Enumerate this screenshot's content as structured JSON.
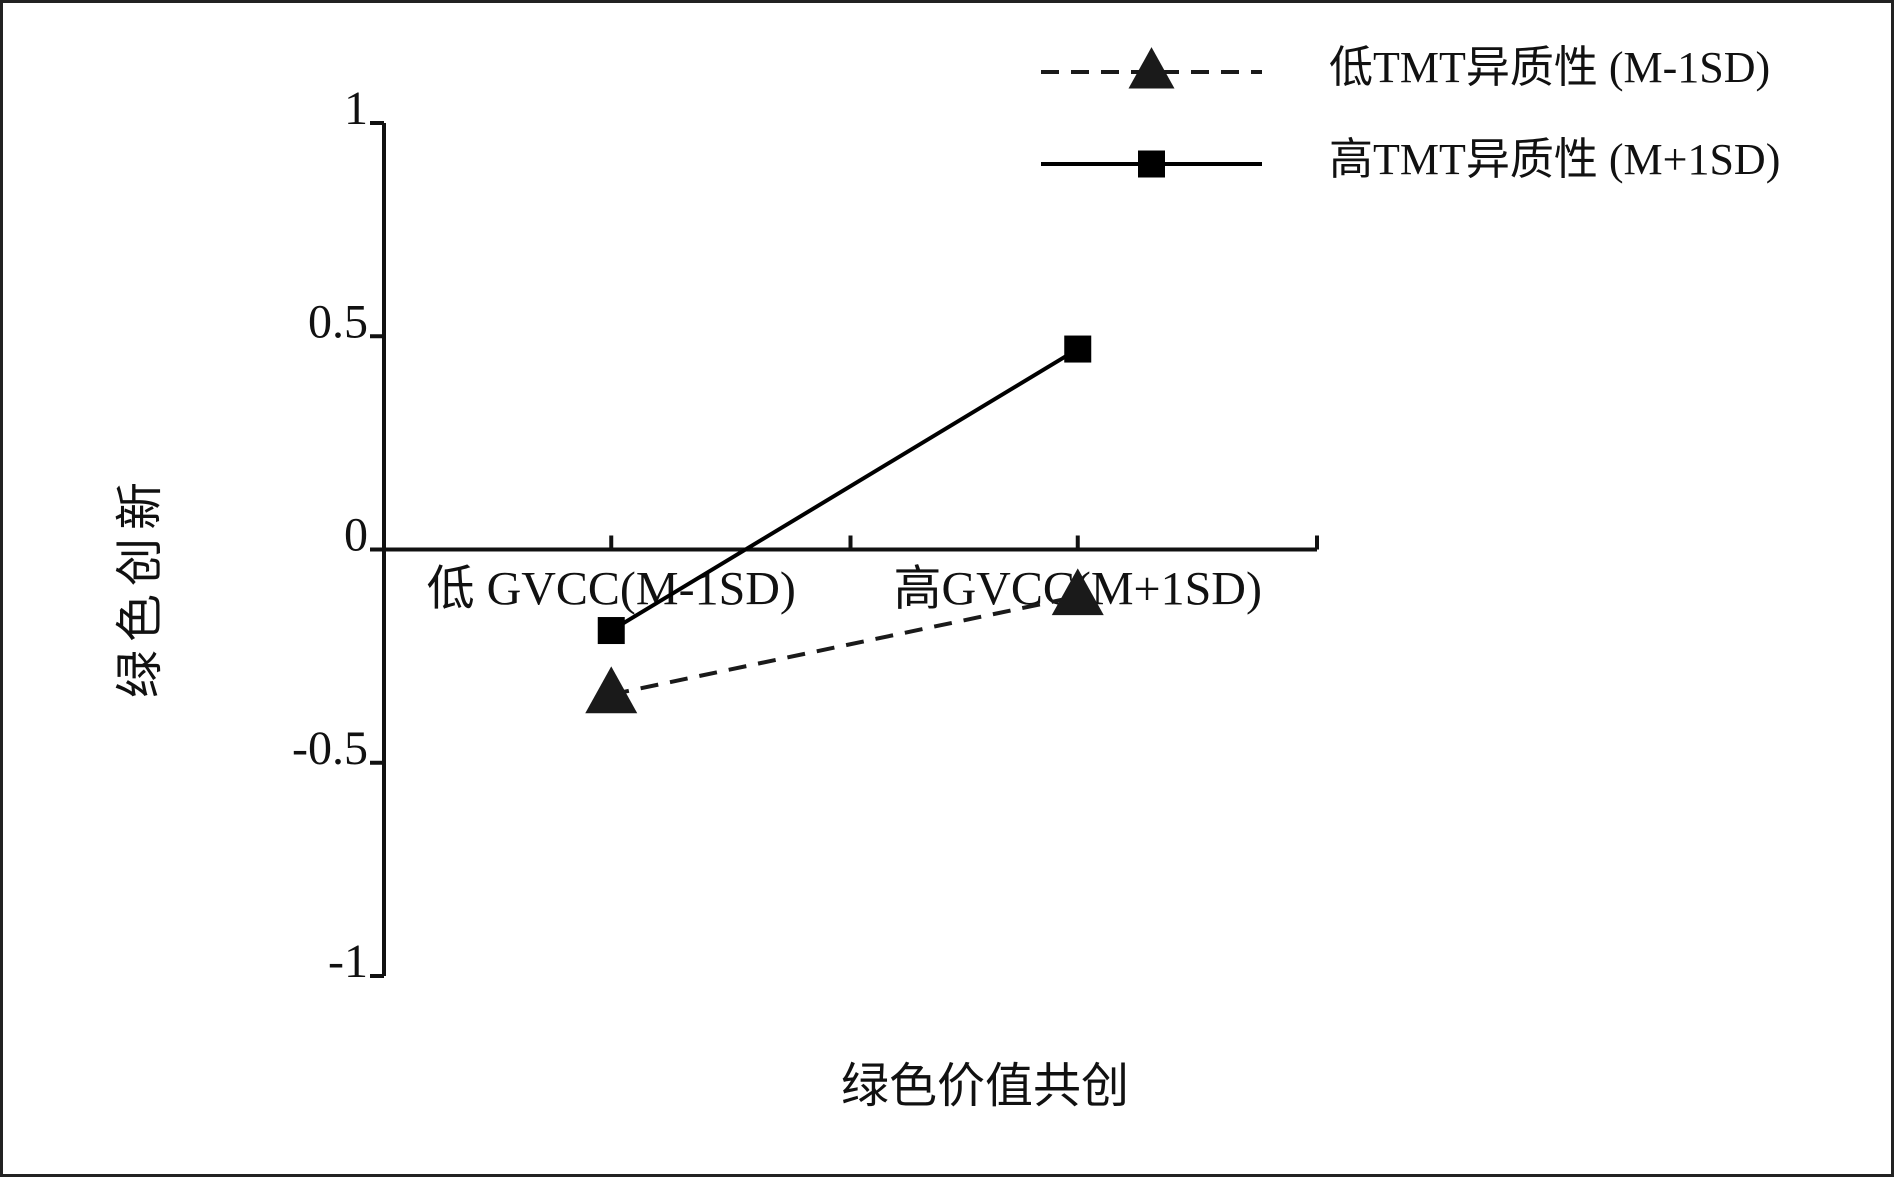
{
  "chart_data": {
    "type": "line",
    "x_label": "绿色价值共创",
    "y_label": "绿色创新",
    "categories": [
      "低 GVCC(M-1SD)",
      "高GVCC(M+1SD)"
    ],
    "series": [
      {
        "name": "低TMT异质性 (M-1SD)",
        "color": "#1a1a1a",
        "marker": "triangle",
        "dashed": true,
        "values": [
          -0.34,
          -0.11
        ]
      },
      {
        "name": "高TMT异质性 (M+1SD)",
        "color": "#000000",
        "marker": "square",
        "dashed": false,
        "values": [
          -0.19,
          0.47
        ]
      }
    ],
    "ylim": [
      -1,
      1
    ],
    "yticks": [
      -1,
      -0.5,
      0,
      0.5,
      1
    ],
    "legend": "top-right"
  }
}
